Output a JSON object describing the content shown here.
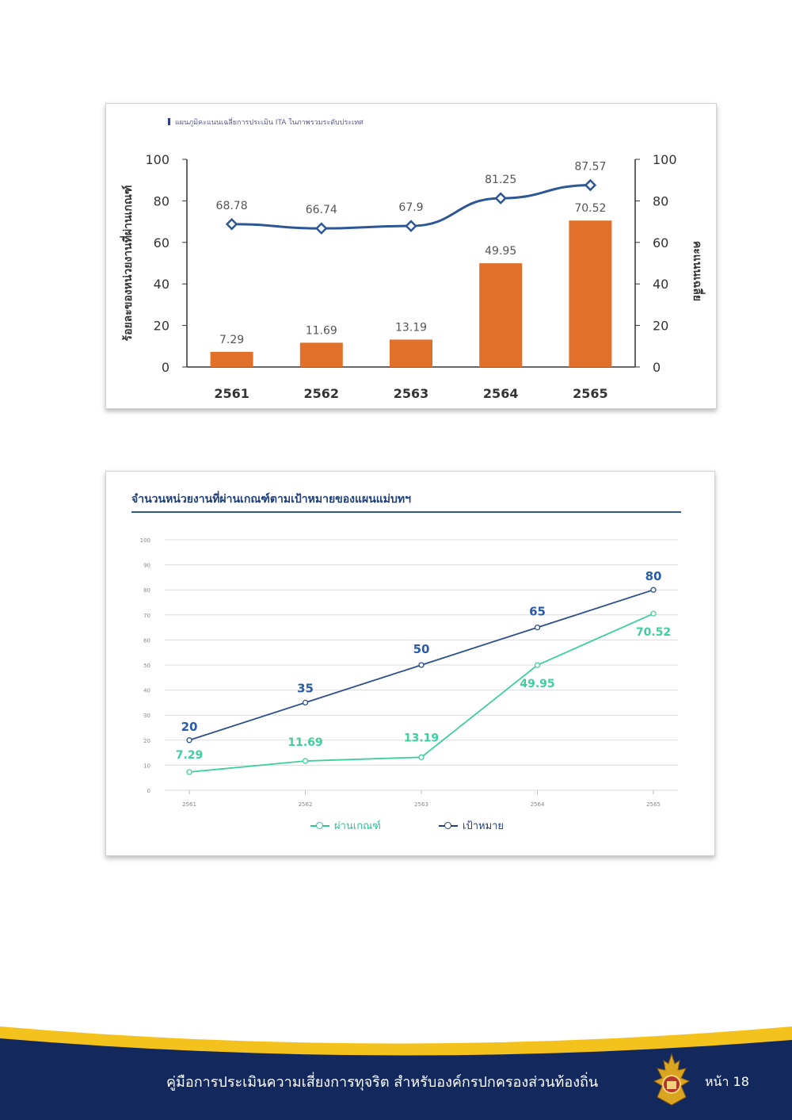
{
  "chart_data": [
    {
      "type": "bar+line",
      "title": "แผนภูมิคะแนนเฉลี่ยการประเมิน ITA ในภาพรวมระดับประเทศ",
      "ylabel": "ร้อยละของหน่วยงานที่ผ่านเกณฑ์",
      "y2label": "คะแนนเฉลี่ย",
      "categories": [
        "2561",
        "2562",
        "2563",
        "2564",
        "2565"
      ],
      "ylim": [
        0,
        100
      ],
      "y2lim": [
        0,
        100
      ],
      "yticks": [
        0,
        20,
        40,
        60,
        80,
        100
      ],
      "series": [
        {
          "kind": "bar",
          "values": [
            7.29,
            11.69,
            13.19,
            49.95,
            70.52
          ],
          "labels": [
            "7.29",
            "11.69",
            "13.19",
            "49.95",
            "70.52"
          ],
          "color": "#e0702a"
        },
        {
          "kind": "line",
          "values": [
            68.78,
            66.74,
            67.9,
            81.25,
            87.57
          ],
          "labels": [
            "68.78",
            "66.74",
            "67.9",
            "81.25",
            "87.57"
          ],
          "color": "#2c5794"
        }
      ],
      "grid": false
    },
    {
      "type": "line",
      "title": "จำนวนหน่วยงานที่ผ่านเกณฑ์ตามเป้าหมายของแผนแม่บทฯ",
      "categories": [
        "2561",
        "2562",
        "2563",
        "2564",
        "2565"
      ],
      "ylim": [
        0,
        100
      ],
      "yticks": [
        "0",
        "10",
        "20",
        "30",
        "40",
        "50",
        "60",
        "70",
        "80",
        "90",
        "100"
      ],
      "grid": true,
      "legend_position": "bottom",
      "series": [
        {
          "name": "ผ่านเกณฑ์",
          "values": [
            7.29,
            11.69,
            13.19,
            49.95,
            70.52
          ],
          "labels": [
            "7.29",
            "11.69",
            "13.19",
            "49.95",
            "70.52"
          ],
          "color": "#3ecf9e"
        },
        {
          "name": "เป้าหมาย",
          "values": [
            20,
            35,
            50,
            65,
            80
          ],
          "labels": [
            "20",
            "35",
            "50",
            "65",
            "80"
          ],
          "color": "#2c4f8c"
        }
      ]
    }
  ],
  "footer": {
    "text": "คู่มือการประเมินความเสี่ยงการทุจริต สำหรับองค์กรปกครองส่วนท้องถิ่น",
    "page": "หน้า 18",
    "colors": {
      "navy": "#13295e",
      "gold": "#f4c21c"
    }
  }
}
